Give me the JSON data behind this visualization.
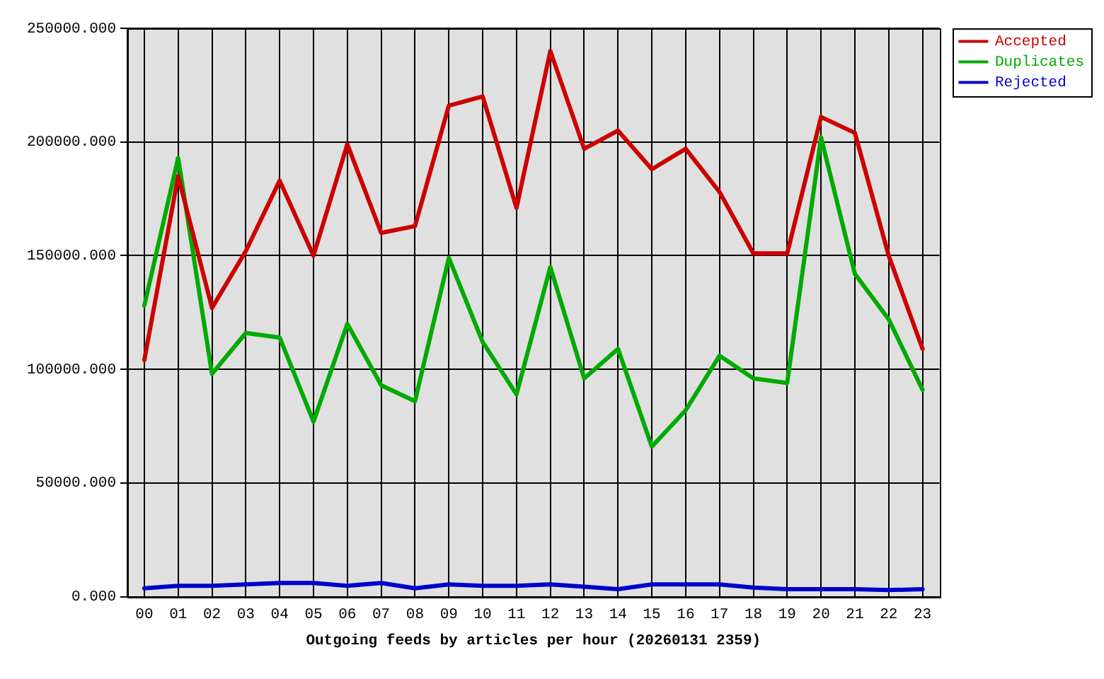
{
  "chart_data": {
    "type": "line",
    "xlabel": "Outgoing feeds by articles per hour (20260131 2359)",
    "categories": [
      "00",
      "01",
      "02",
      "03",
      "04",
      "05",
      "06",
      "07",
      "08",
      "09",
      "10",
      "11",
      "12",
      "13",
      "14",
      "15",
      "16",
      "17",
      "18",
      "19",
      "20",
      "21",
      "22",
      "23"
    ],
    "series": [
      {
        "name": "Accepted",
        "color": "#cc0000",
        "values": [
          104000,
          185000,
          127000,
          152000,
          183000,
          150000,
          199000,
          160000,
          163000,
          216000,
          220000,
          171000,
          240000,
          197000,
          205000,
          188000,
          197000,
          178000,
          151000,
          151000,
          211000,
          204000,
          150000,
          109000
        ]
      },
      {
        "name": "Duplicates",
        "color": "#00aa00",
        "values": [
          128000,
          193000,
          98000,
          116000,
          114000,
          77000,
          120000,
          93000,
          86000,
          149000,
          112000,
          89000,
          145000,
          96000,
          109000,
          66000,
          82000,
          106000,
          96000,
          94000,
          202000,
          142000,
          122000,
          91000
        ]
      },
      {
        "name": "Rejected",
        "color": "#0000cc",
        "values": [
          3700,
          4800,
          4800,
          5400,
          6000,
          6000,
          4800,
          6000,
          3700,
          5400,
          4800,
          4800,
          5400,
          4400,
          3300,
          5400,
          5400,
          5400,
          4000,
          3300,
          3300,
          3300,
          2900,
          3300
        ]
      }
    ],
    "ylim": [
      0,
      250000
    ],
    "yticks": [
      {
        "value": 0,
        "label": "0.000"
      },
      {
        "value": 50000,
        "label": "50000.000"
      },
      {
        "value": 100000,
        "label": "100000.000"
      },
      {
        "value": 150000,
        "label": "150000.000"
      },
      {
        "value": 200000,
        "label": "200000.000"
      },
      {
        "value": 250000,
        "label": "250000.000"
      }
    ],
    "grid": true,
    "legend": "top right",
    "marker": "none",
    "line_style": "solid"
  }
}
